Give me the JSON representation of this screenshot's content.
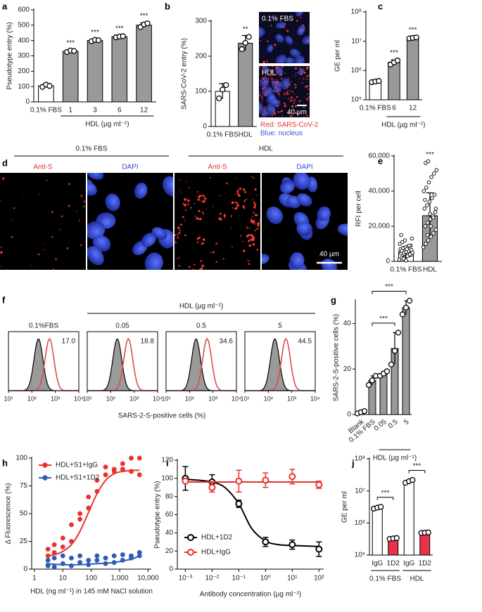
{
  "chart_data": [
    {
      "type": "bar",
      "panel": "a",
      "ylabel": "Pseudotype entry (%)",
      "categories": [
        "0.1% FBS",
        "1",
        "3",
        "6",
        "12"
      ],
      "values": [
        105,
        330,
        400,
        425,
        500
      ],
      "errors": [
        10,
        8,
        8,
        4,
        15
      ],
      "replicates": [
        [
          98,
          112,
          104
        ],
        [
          325,
          335,
          332
        ],
        [
          395,
          404,
          402
        ],
        [
          421,
          426,
          428
        ],
        [
          488,
          505,
          512
        ]
      ],
      "colors": [
        "#ffffff",
        "#999999",
        "#999999",
        "#999999",
        "#999999"
      ],
      "significance": [
        null,
        "***",
        "***",
        "***",
        "***"
      ],
      "groups": [
        {
          "label": "HDL (µg ml⁻¹)",
          "from": 1,
          "to": 4
        }
      ],
      "ylim": [
        0,
        600
      ],
      "yticks": [
        0,
        100,
        200,
        300,
        400,
        500,
        600
      ]
    },
    {
      "type": "bar",
      "panel": "b",
      "ylabel": "SARS-CoV-2 entry (%)",
      "categories": [
        "0.1% FBS",
        "HDL"
      ],
      "values": [
        100,
        237
      ],
      "errors": [
        22,
        22
      ],
      "replicates": [
        [
          80,
          105,
          118
        ],
        [
          220,
          238,
          255
        ]
      ],
      "colors": [
        "#ffffff",
        "#999999"
      ],
      "significance": [
        null,
        "**"
      ],
      "ylim": [
        0,
        300
      ],
      "yticks": [
        0,
        100,
        200,
        300
      ],
      "images": {
        "labels": [
          "0.1% FBS",
          "HDL"
        ],
        "scale_bar": "40 µm",
        "legend": [
          "Red: SARS-CoV-2",
          "Blue: nucleus"
        ],
        "legend_colors": [
          "#e8322d",
          "#3c55d0"
        ]
      }
    },
    {
      "type": "bar",
      "panel": "c",
      "ylabel": "GE per ml",
      "log": true,
      "categories": [
        "0.1% FBS",
        "6",
        "12"
      ],
      "values": [
        420000,
        1900000,
        13000000
      ],
      "errors": [
        30000,
        400000,
        1000000
      ],
      "replicates": [
        [
          400000,
          420000,
          440000
        ],
        [
          1600000,
          1900000,
          2200000
        ],
        [
          12500000,
          13000000,
          13500000
        ]
      ],
      "colors": [
        "#ffffff",
        "#999999",
        "#999999"
      ],
      "significance": [
        null,
        "***",
        "***"
      ],
      "groups": [
        {
          "label": "HDL (µg ml⁻¹)",
          "from": 1,
          "to": 2
        }
      ],
      "ylim": [
        100000,
        100000000
      ],
      "yticks": [
        {
          "value": 100000,
          "label": "10⁵"
        },
        {
          "value": 1000000,
          "label": "10⁶"
        },
        {
          "value": 10000000,
          "label": "10⁷"
        },
        {
          "value": 100000000,
          "label": "10⁸"
        }
      ]
    },
    {
      "type": "bar",
      "panel": "e",
      "ylabel": "RFI per cell",
      "categories": [
        "0.1% FBS",
        "HDL"
      ],
      "values": [
        5500,
        26000
      ],
      "errors": [
        3000,
        13000
      ],
      "points": [
        [
          1000,
          2000,
          2500,
          3000,
          3500,
          4000,
          4500,
          5000,
          5500,
          6000,
          6500,
          7000,
          7500,
          8000,
          8500,
          9000,
          10000,
          11000,
          12000,
          3000,
          4000,
          5000,
          6000,
          2000,
          7000,
          9000,
          13000,
          15000,
          1500,
          500
        ],
        [
          8000,
          10000,
          12000,
          14000,
          16000,
          18000,
          20000,
          22000,
          24000,
          26000,
          28000,
          30000,
          32000,
          34000,
          36000,
          38000,
          40000,
          42000,
          45000,
          48000,
          50000,
          52000,
          56000,
          57000,
          20000,
          25000,
          30000,
          35000,
          15000,
          27000
        ]
      ],
      "colors": [
        "#ffffff",
        "#999999"
      ],
      "significance": [
        null,
        "***"
      ],
      "ylim": [
        0,
        60000
      ],
      "yticks": [
        0,
        {
          "value": 20000,
          "label": "20,000"
        },
        {
          "value": 40000,
          "label": "40,000"
        },
        {
          "value": 60000,
          "label": "60,000"
        }
      ]
    },
    {
      "type": "flow",
      "panel": "f",
      "xlabel": "SARS-2-S-positive cells (%)",
      "conditions": [
        "0.1%FBS",
        "0.05",
        "0.5",
        "5"
      ],
      "values": [
        17.0,
        18.8,
        34.6,
        44.5
      ],
      "value_labels": [
        "17.0",
        "18.8",
        "34.6",
        "44.5"
      ],
      "colors": [
        "#9a9a9a",
        "#e04a50"
      ],
      "groups": [
        {
          "label": "HDL (µg ml⁻¹)",
          "from": 1,
          "to": 3
        }
      ],
      "xlog": true,
      "xlim": [
        10,
        10000
      ],
      "xticks": [
        {
          "value": 10,
          "label": "10¹"
        },
        {
          "value": 100,
          "label": "10²"
        },
        {
          "value": 1000,
          "label": "10³"
        },
        {
          "value": 10000,
          "label": "10⁴"
        }
      ]
    },
    {
      "type": "bar",
      "panel": "g",
      "ylabel": "SARS-2-S-positive cells (%)",
      "rotated_labels": true,
      "categories": [
        "Blank",
        "0.1% FBS",
        "0.05",
        "0.5",
        "5"
      ],
      "values": [
        1,
        15,
        18,
        29,
        47
      ],
      "errors": [
        1,
        2,
        1,
        7,
        3
      ],
      "replicates": [
        [
          0.5,
          1,
          1.5
        ],
        [
          13,
          15,
          17
        ],
        [
          17,
          18,
          19
        ],
        [
          22,
          28,
          36
        ],
        [
          44,
          47,
          50
        ]
      ],
      "colors": [
        "#999999",
        "#999999",
        "#999999",
        "#999999",
        "#999999"
      ],
      "comparisons": [
        {
          "between": [
            1,
            3
          ],
          "label": "***"
        },
        {
          "between": [
            1,
            4
          ],
          "label": "***"
        }
      ],
      "groups": [
        {
          "label": "HDL (µg ml⁻¹)",
          "from": 2,
          "to": 4
        }
      ],
      "ylim": [
        0,
        50
      ],
      "yticks": [
        0,
        20,
        40
      ]
    },
    {
      "type": "scatter",
      "panel": "h",
      "xlabel": "HDL (ng ml⁻¹) in 145 mM NaCl solution",
      "ylabel": "Δ Fluorescence (%)",
      "legend": "upper left",
      "markers": "filled",
      "xlog": true,
      "series": [
        {
          "name": "HDL+S1+IgG",
          "color": "#e8322d",
          "x": [
            3,
            3,
            5,
            5,
            10,
            10,
            20,
            20,
            40,
            40,
            80,
            80,
            160,
            160,
            320,
            320,
            640,
            640,
            1280,
            1280,
            2560,
            2560,
            5000,
            5000
          ],
          "values": [
            12,
            18,
            15,
            22,
            20,
            28,
            25,
            40,
            45,
            50,
            55,
            65,
            70,
            80,
            85,
            92,
            88,
            90,
            90,
            95,
            88,
            100,
            85,
            100
          ],
          "fit_x": [
            2.5,
            5,
            10,
            20,
            40,
            80,
            160,
            320,
            640,
            1280,
            2560,
            5000
          ],
          "fit_values": [
            12,
            13,
            16,
            22,
            34,
            51,
            68,
            80,
            86,
            88,
            89,
            89
          ]
        },
        {
          "name": "HDL+S1+1D2",
          "color": "#2f5bb7",
          "x": [
            3,
            3,
            5,
            5,
            10,
            10,
            20,
            20,
            40,
            40,
            80,
            80,
            160,
            160,
            320,
            320,
            640,
            640,
            1280,
            1280,
            2560,
            2560,
            5000,
            5000
          ],
          "values": [
            3,
            8,
            2,
            10,
            5,
            12,
            3,
            10,
            6,
            12,
            4,
            8,
            8,
            12,
            5,
            10,
            6,
            12,
            8,
            13,
            10,
            12,
            12,
            15
          ],
          "fit_x": [
            2.5,
            10,
            40,
            160,
            640,
            2560,
            5000
          ],
          "fit_values": [
            5,
            4,
            4,
            5,
            6,
            9,
            12
          ]
        }
      ],
      "xlim": [
        0.8,
        13000
      ],
      "xticks": [
        1,
        10,
        100,
        {
          "value": 1000,
          "label": "1,000"
        },
        {
          "value": 10000,
          "label": "10,000"
        }
      ],
      "ylim": [
        0,
        100
      ],
      "yticks": [
        0,
        25,
        50,
        75,
        100
      ]
    },
    {
      "type": "line",
      "panel": "i",
      "xlabel": "Antibody concentration (µg ml⁻¹)",
      "ylabel": "Pseudotype entry (%)",
      "legend": "lower left",
      "markers": "open",
      "xlog": true,
      "series": [
        {
          "name": "HDL+1D2",
          "color": "#000000",
          "x": [
            0.001,
            0.01,
            0.1,
            1,
            10,
            100
          ],
          "values": [
            100,
            96,
            72,
            30,
            27,
            22
          ],
          "errors": [
            13,
            8,
            4,
            5,
            5,
            8
          ],
          "fit_x": [
            0.001,
            0.003,
            0.01,
            0.03,
            0.1,
            0.3,
            1,
            3,
            10,
            100
          ],
          "fit_values": [
            99,
            98,
            96,
            90,
            72,
            45,
            31,
            27,
            26,
            25
          ]
        },
        {
          "name": "HDL+IgG",
          "color": "#e8322d",
          "x": [
            0.001,
            0.01,
            0.1,
            1,
            10,
            100
          ],
          "values": [
            97,
            90,
            97,
            98,
            102,
            93
          ],
          "errors": [
            2,
            5,
            12,
            8,
            8,
            4
          ],
          "fit_x": [
            0.001,
            100
          ],
          "fit_values": [
            96,
            96
          ]
        }
      ],
      "xlim": [
        0.0005,
        150
      ],
      "xticks": [
        {
          "value": 0.001,
          "label": "10⁻³"
        },
        {
          "value": 0.01,
          "label": "10⁻²"
        },
        {
          "value": 0.1,
          "label": "10⁻¹"
        },
        {
          "value": 1,
          "label": "10⁰"
        },
        {
          "value": 10,
          "label": "10¹"
        },
        {
          "value": 100,
          "label": "10²"
        }
      ],
      "ylim": [
        0,
        120
      ],
      "yticks": [
        0,
        20,
        40,
        60,
        80,
        100,
        120
      ]
    },
    {
      "type": "bar",
      "panel": "j",
      "ylabel": "GE per ml",
      "log": true,
      "categories": [
        "IgG",
        "1D2",
        "IgG",
        "1D2"
      ],
      "values": [
        3000000,
        330000,
        20000000,
        500000
      ],
      "errors": [
        200000,
        20000,
        2000000,
        20000
      ],
      "replicates": [
        [
          2800000,
          3000000,
          3200000
        ],
        [
          320000,
          330000,
          340000
        ],
        [
          18000000,
          20000000,
          22000000
        ],
        [
          490000,
          500000,
          510000
        ]
      ],
      "colors": [
        "#ffffff",
        "#e8324a",
        "#ffffff",
        "#e8324a"
      ],
      "comparisons": [
        {
          "between": [
            0,
            1
          ],
          "label": "***"
        },
        {
          "between": [
            2,
            3
          ],
          "label": "***"
        }
      ],
      "groups": [
        {
          "label": "0.1% FBS",
          "from": 0,
          "to": 1
        },
        {
          "label": "HDL",
          "from": 2,
          "to": 3
        }
      ],
      "ylim": [
        100000,
        100000000
      ],
      "yticks": [
        {
          "value": 100000,
          "label": "10⁵"
        },
        {
          "value": 1000000,
          "label": "10⁶"
        },
        {
          "value": 10000000,
          "label": "10⁷"
        },
        {
          "value": 100000000,
          "label": "10⁸"
        }
      ]
    }
  ],
  "micrographs": {
    "panel": "d",
    "groups": [
      {
        "label": "0.1% FBS",
        "channels": [
          "Anti-S",
          "DAPI"
        ]
      },
      {
        "label": "HDL",
        "channels": [
          "Anti-S",
          "DAPI"
        ]
      }
    ],
    "channel_colors": [
      "#e8322d",
      "#2f4bd8"
    ],
    "scale_bar": "40 µm"
  }
}
